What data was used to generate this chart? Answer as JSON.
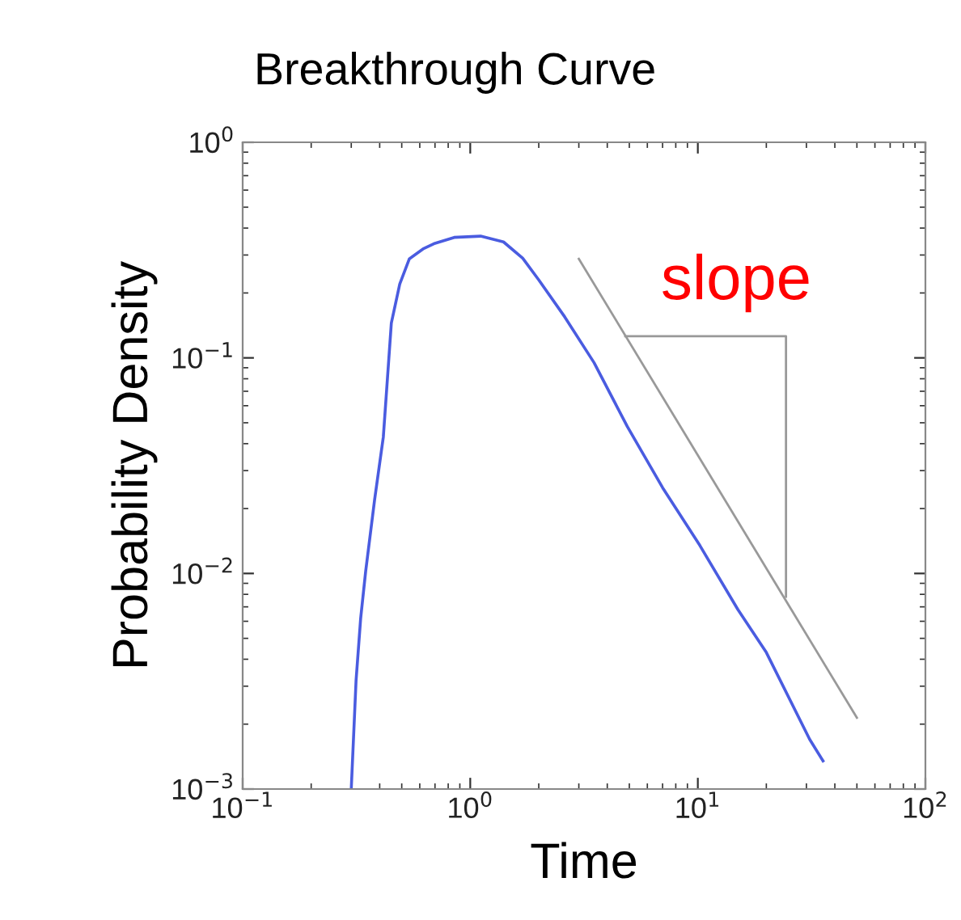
{
  "chart_data": {
    "type": "line",
    "title": "Breakthrough Curve",
    "xlabel": "Time",
    "ylabel": "Probability Density",
    "log": "xy",
    "grid": false,
    "xlim": [
      0.1,
      100
    ],
    "ylim": [
      0.001,
      1
    ],
    "xticks": [
      {
        "value": 0.1,
        "label": "10$^{−1}$"
      },
      {
        "value": 1,
        "label": "10$^{0}$"
      },
      {
        "value": 10,
        "label": "10$^{1}$"
      },
      {
        "value": 100,
        "label": "10$^{2}$"
      }
    ],
    "yticks": [
      {
        "value": 0.001,
        "label": "10$^{−3}$"
      },
      {
        "value": 0.01,
        "label": "10$^{−2}$"
      },
      {
        "value": 0.1,
        "label": "10$^{−1}$"
      },
      {
        "value": 1,
        "label": "10$^{0}$"
      }
    ],
    "series": [
      {
        "color": "#4a5ce0",
        "x": [
          0.3,
          0.315,
          0.33,
          0.347,
          0.38,
          0.415,
          0.45,
          0.49,
          0.54,
          0.62,
          0.7,
          0.85,
          1.11,
          1.4,
          1.7,
          2.0,
          2.6,
          3.5,
          4.9,
          7.0,
          10.2,
          15,
          20,
          31,
          35.5
        ],
        "values": [
          0.001,
          0.0032,
          0.0062,
          0.0102,
          0.022,
          0.043,
          0.145,
          0.22,
          0.288,
          0.32,
          0.34,
          0.362,
          0.367,
          0.345,
          0.29,
          0.23,
          0.155,
          0.095,
          0.048,
          0.025,
          0.0135,
          0.0068,
          0.0043,
          0.0017,
          0.00135
        ]
      },
      {
        "color": "#999999",
        "x": [
          3.0,
          50
        ],
        "values": [
          0.288,
          0.00214
        ]
      },
      {
        "color": "#999999",
        "x": [
          4.8,
          24.4,
          24.4
        ],
        "values": [
          0.126,
          0.126,
          0.0078
        ]
      }
    ],
    "annotations": [
      "slope"
    ]
  }
}
